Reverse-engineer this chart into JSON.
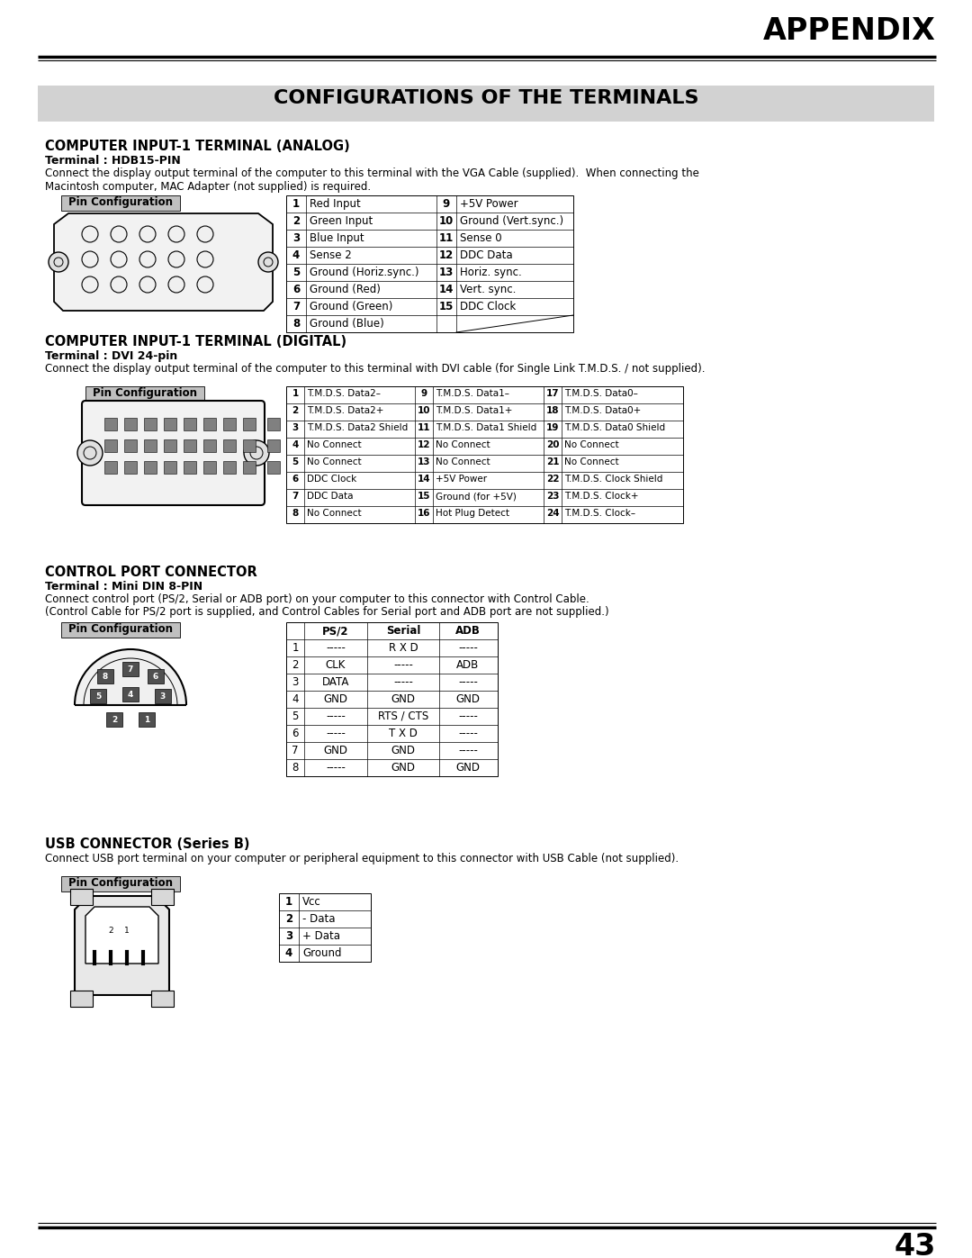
{
  "page_title": "APPENDIX",
  "main_title": "CONFIGURATIONS OF THE TERMINALS",
  "page_number": "43",
  "bg_color": "#ffffff",
  "title_bg_color": "#d0d0d0",
  "section1_title": "COMPUTER INPUT-1 TERMINAL (ANALOG)",
  "section1_sub": "Terminal : HDB15-PIN",
  "section1_desc": "Connect the display output terminal of the computer to this terminal with the VGA Cable (supplied).  When connecting the\nMacintosh computer, MAC Adapter (not supplied) is required.",
  "section1_pins": [
    [
      "1",
      "Red Input",
      "9",
      "+5V Power"
    ],
    [
      "2",
      "Green Input",
      "10",
      "Ground (Vert.sync.)"
    ],
    [
      "3",
      "Blue Input",
      "11",
      "Sense 0"
    ],
    [
      "4",
      "Sense 2",
      "12",
      "DDC Data"
    ],
    [
      "5",
      "Ground (Horiz.sync.)",
      "13",
      "Horiz. sync."
    ],
    [
      "6",
      "Ground (Red)",
      "14",
      "Vert. sync."
    ],
    [
      "7",
      "Ground (Green)",
      "15",
      "DDC Clock"
    ],
    [
      "8",
      "Ground (Blue)",
      "",
      ""
    ]
  ],
  "section2_title": "COMPUTER INPUT-1 TERMINAL (DIGITAL)",
  "section2_sub": "Terminal : DVI 24-pin",
  "section2_desc": "Connect the display output terminal of the computer to this terminal with DVI cable (for Single Link T.M.D.S. / not supplied).",
  "section2_pins": [
    [
      "1",
      "T.M.D.S. Data2–",
      "9",
      "T.M.D.S. Data1–",
      "17",
      "T.M.D.S. Data0–"
    ],
    [
      "2",
      "T.M.D.S. Data2+",
      "10",
      "T.M.D.S. Data1+",
      "18",
      "T.M.D.S. Data0+"
    ],
    [
      "3",
      "T.M.D.S. Data2 Shield",
      "11",
      "T.M.D.S. Data1 Shield",
      "19",
      "T.M.D.S. Data0 Shield"
    ],
    [
      "4",
      "No Connect",
      "12",
      "No Connect",
      "20",
      "No Connect"
    ],
    [
      "5",
      "No Connect",
      "13",
      "No Connect",
      "21",
      "No Connect"
    ],
    [
      "6",
      "DDC Clock",
      "14",
      "+5V Power",
      "22",
      "T.M.D.S. Clock Shield"
    ],
    [
      "7",
      "DDC Data",
      "15",
      "Ground (for +5V)",
      "23",
      "T.M.D.S. Clock+"
    ],
    [
      "8",
      "No Connect",
      "16",
      "Hot Plug Detect",
      "24",
      "T.M.D.S. Clock–"
    ]
  ],
  "section3_title": "CONTROL PORT CONNECTOR",
  "section3_sub": "Terminal : Mini DIN 8-PIN",
  "section3_desc1": "Connect control port (PS/2, Serial or ADB port) on your computer to this connector with Control Cable.",
  "section3_desc2": "(Control Cable for PS/2 port is supplied, and Control Cables for Serial port and ADB port are not supplied.)",
  "section3_pins": [
    [
      "",
      "PS/2",
      "Serial",
      "ADB"
    ],
    [
      "1",
      "-----",
      "R X D",
      "-----"
    ],
    [
      "2",
      "CLK",
      "-----",
      "ADB"
    ],
    [
      "3",
      "DATA",
      "-----",
      "-----"
    ],
    [
      "4",
      "GND",
      "GND",
      "GND"
    ],
    [
      "5",
      "-----",
      "RTS / CTS",
      "-----"
    ],
    [
      "6",
      "-----",
      "T X D",
      "-----"
    ],
    [
      "7",
      "GND",
      "GND",
      "-----"
    ],
    [
      "8",
      "-----",
      "GND",
      "GND"
    ]
  ],
  "section4_title": "USB CONNECTOR (Series B)",
  "section4_desc": "Connect USB port terminal on your computer or peripheral equipment to this connector with USB Cable (not supplied).",
  "section4_pins": [
    [
      "1",
      "Vcc"
    ],
    [
      "2",
      "- Data"
    ],
    [
      "3",
      "+ Data"
    ],
    [
      "4",
      "Ground"
    ]
  ],
  "pin_config_label": "Pin Configuration",
  "pin_config_bg": "#c0c0c0"
}
